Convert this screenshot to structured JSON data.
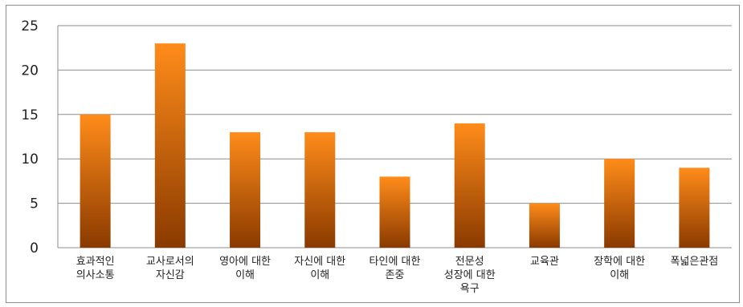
{
  "chart_data": {
    "type": "bar",
    "categories": [
      [
        "효과적인",
        "의사소통"
      ],
      [
        "교사로서의",
        "자신감"
      ],
      [
        "영아에 대한",
        "이해"
      ],
      [
        "자신에 대한",
        "이해"
      ],
      [
        "타인에 대한",
        "존중"
      ],
      [
        "전문성",
        "성장에 대한",
        "욕구"
      ],
      [
        "교육관"
      ],
      [
        "장학에 대한",
        "이해"
      ],
      [
        "폭넓은관점"
      ]
    ],
    "values": [
      15,
      23,
      13,
      13,
      8,
      14,
      5,
      10,
      9
    ],
    "ylim": [
      0,
      25
    ],
    "yticks": [
      0,
      5,
      10,
      15,
      20,
      25
    ],
    "grid": true,
    "legend": "none",
    "bar_color_top": "#ff8c1a",
    "bar_color_bottom": "#8a3a00",
    "grid_color": "#8c8c8c"
  }
}
